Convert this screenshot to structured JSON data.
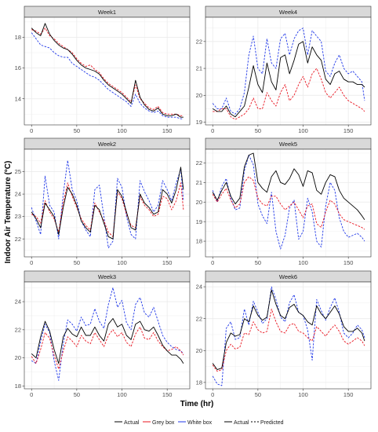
{
  "figure": {
    "ylabel": "Indoor Air Temperature (°C)",
    "xlabel": "Time (hr)"
  },
  "legend": {
    "items": [
      {
        "label": "Actual",
        "color": "#000000",
        "dash": "solid"
      },
      {
        "label": "Grey box",
        "color": "#e8141f",
        "dash": "solid"
      },
      {
        "label": "White box",
        "color": "#1f37e8",
        "dash": "solid"
      },
      {
        "label": "Actual",
        "color": "#000000",
        "dash": "solid"
      },
      {
        "label": "Predicted",
        "color": "#000000",
        "dash": "dashed"
      }
    ]
  },
  "colors": {
    "actual": "#000000",
    "grey_box": "#e8141f",
    "white_box": "#1f37e8",
    "panel_bg": "#ffffff",
    "strip_bg": "#d9d9d9",
    "grid": "#ebebeb"
  },
  "chart_data": [
    {
      "type": "line",
      "title": "Week1",
      "xlim": [
        -8,
        175
      ],
      "ylim": [
        12.3,
        19.3
      ],
      "xticks": [
        0,
        50,
        100,
        150
      ],
      "yticks": [
        14,
        16,
        18
      ],
      "grid": true,
      "x": [
        0,
        5,
        10,
        15,
        20,
        25,
        30,
        35,
        40,
        45,
        50,
        55,
        60,
        65,
        70,
        75,
        80,
        85,
        90,
        95,
        100,
        105,
        110,
        115,
        120,
        125,
        130,
        135,
        140,
        145,
        150,
        155,
        160,
        165,
        168
      ],
      "series": [
        {
          "name": "Actual",
          "values": [
            18.6,
            18.3,
            18.1,
            18.9,
            18.2,
            17.8,
            17.5,
            17.3,
            17.2,
            16.9,
            16.5,
            16.2,
            16.0,
            15.9,
            15.8,
            15.6,
            15.2,
            14.9,
            14.7,
            14.5,
            14.3,
            14.0,
            13.7,
            15.2,
            14.1,
            13.6,
            13.3,
            13.2,
            13.4,
            13.0,
            12.9,
            12.9,
            13.0,
            12.8,
            12.8
          ]
        },
        {
          "name": "Grey box",
          "values": [
            18.5,
            18.4,
            18.2,
            18.6,
            18.1,
            17.9,
            17.6,
            17.4,
            17.2,
            17.0,
            16.6,
            16.3,
            16.1,
            16.2,
            15.9,
            15.7,
            15.3,
            15.0,
            14.8,
            14.6,
            14.4,
            14.1,
            13.8,
            14.9,
            14.0,
            13.7,
            13.4,
            13.3,
            13.5,
            13.1,
            13.0,
            13.0,
            13.0,
            12.9,
            12.9
          ]
        },
        {
          "name": "White box",
          "values": [
            18.3,
            17.9,
            17.5,
            17.4,
            17.3,
            17.0,
            16.8,
            16.7,
            16.7,
            16.3,
            16.1,
            15.9,
            15.7,
            15.5,
            15.4,
            15.2,
            14.9,
            14.6,
            14.4,
            14.2,
            14.0,
            13.8,
            13.5,
            14.3,
            13.7,
            13.4,
            13.2,
            13.1,
            13.2,
            12.9,
            12.8,
            12.8,
            12.8,
            12.7,
            12.7
          ]
        }
      ]
    },
    {
      "type": "line",
      "title": "Week4",
      "xlim": [
        -8,
        175
      ],
      "ylim": [
        18.9,
        22.9
      ],
      "xticks": [
        0,
        50,
        100,
        150
      ],
      "yticks": [
        19,
        20,
        21,
        22
      ],
      "grid": true,
      "x": [
        0,
        5,
        10,
        15,
        20,
        25,
        30,
        35,
        40,
        45,
        50,
        55,
        60,
        65,
        70,
        75,
        80,
        85,
        90,
        95,
        100,
        105,
        110,
        115,
        120,
        125,
        130,
        135,
        140,
        145,
        150,
        155,
        160,
        165,
        168
      ],
      "series": [
        {
          "name": "Actual",
          "values": [
            19.5,
            19.4,
            19.4,
            19.6,
            19.3,
            19.2,
            19.4,
            19.6,
            20.3,
            21.1,
            20.4,
            20.1,
            21.2,
            20.5,
            20.2,
            21.4,
            21.5,
            20.8,
            21.3,
            21.9,
            22.0,
            21.2,
            21.8,
            21.5,
            21.3,
            20.6,
            20.4,
            20.8,
            20.9,
            20.6,
            20.5,
            20.5,
            20.4,
            20.4,
            20.3
          ]
        },
        {
          "name": "Grey box",
          "values": [
            19.4,
            19.4,
            19.5,
            19.5,
            19.2,
            19.1,
            19.2,
            19.3,
            19.5,
            19.9,
            19.5,
            19.5,
            20.1,
            19.8,
            19.6,
            20.1,
            20.4,
            19.8,
            20.0,
            20.4,
            20.7,
            20.3,
            20.8,
            21.0,
            20.6,
            20.1,
            19.9,
            20.1,
            20.3,
            20.0,
            19.8,
            19.7,
            19.6,
            19.5,
            19.4
          ]
        },
        {
          "name": "White box",
          "values": [
            19.7,
            19.5,
            19.5,
            19.9,
            19.4,
            19.3,
            19.5,
            20.1,
            21.5,
            22.2,
            21.0,
            20.8,
            22.1,
            21.2,
            21.0,
            22.1,
            22.3,
            21.5,
            22.1,
            22.4,
            22.5,
            21.5,
            22.4,
            22.2,
            22.0,
            20.9,
            20.7,
            21.2,
            21.5,
            21.0,
            20.8,
            20.9,
            20.7,
            20.5,
            19.8
          ]
        }
      ]
    },
    {
      "type": "line",
      "title": "Week2",
      "xlim": [
        -8,
        175
      ],
      "ylim": [
        21.2,
        26.0
      ],
      "xticks": [
        0,
        50,
        100,
        150
      ],
      "yticks": [
        22,
        23,
        24,
        25
      ],
      "grid": true,
      "x": [
        0,
        5,
        10,
        15,
        20,
        25,
        30,
        35,
        40,
        45,
        50,
        55,
        60,
        65,
        70,
        75,
        80,
        85,
        90,
        95,
        100,
        105,
        110,
        115,
        120,
        125,
        130,
        135,
        140,
        145,
        150,
        155,
        160,
        165,
        168
      ],
      "series": [
        {
          "name": "Actual",
          "values": [
            23.2,
            22.9,
            22.5,
            23.6,
            23.3,
            23.0,
            22.2,
            23.4,
            24.3,
            24.0,
            23.5,
            22.8,
            22.5,
            22.3,
            23.5,
            23.3,
            22.7,
            22.1,
            22.0,
            24.2,
            23.9,
            23.2,
            22.5,
            22.4,
            24.0,
            23.6,
            23.4,
            23.1,
            23.2,
            24.2,
            24.0,
            23.6,
            24.2,
            25.2,
            24.2
          ]
        },
        {
          "name": "Grey box",
          "values": [
            23.1,
            23.0,
            22.7,
            23.7,
            23.2,
            22.9,
            22.3,
            23.6,
            24.5,
            23.9,
            23.4,
            22.9,
            22.6,
            22.4,
            23.6,
            23.2,
            22.8,
            22.3,
            22.1,
            24.1,
            23.8,
            23.1,
            22.6,
            22.5,
            23.9,
            23.5,
            23.3,
            23.0,
            23.1,
            23.9,
            23.8,
            23.3,
            23.7,
            24.5,
            23.3
          ]
        },
        {
          "name": "White box",
          "values": [
            23.4,
            22.8,
            22.2,
            24.8,
            23.5,
            23.2,
            22.0,
            24.0,
            25.5,
            24.2,
            23.7,
            22.8,
            22.4,
            22.1,
            24.2,
            24.4,
            23.0,
            21.6,
            21.9,
            24.7,
            24.3,
            23.0,
            22.2,
            22.0,
            24.6,
            24.1,
            23.7,
            23.2,
            23.5,
            24.6,
            24.2,
            23.7,
            24.5,
            25.1,
            23.7
          ]
        }
      ]
    },
    {
      "type": "line",
      "title": "Week5",
      "xlim": [
        -8,
        175
      ],
      "ylim": [
        17.2,
        22.7
      ],
      "xticks": [
        0,
        50,
        100,
        150
      ],
      "yticks": [
        18,
        19,
        20,
        21,
        22
      ],
      "grid": true,
      "x": [
        0,
        5,
        10,
        15,
        20,
        25,
        30,
        35,
        40,
        45,
        50,
        55,
        60,
        65,
        70,
        75,
        80,
        85,
        90,
        95,
        100,
        105,
        110,
        115,
        120,
        125,
        130,
        135,
        140,
        145,
        150,
        155,
        160,
        165,
        168
      ],
      "series": [
        {
          "name": "Actual",
          "values": [
            20.5,
            20.1,
            20.6,
            21.0,
            20.3,
            19.9,
            20.2,
            21.8,
            22.4,
            22.5,
            21.0,
            20.7,
            20.5,
            21.3,
            21.6,
            21.0,
            20.9,
            21.2,
            21.7,
            21.4,
            20.8,
            21.6,
            21.5,
            20.6,
            20.4,
            21.0,
            21.4,
            21.3,
            20.6,
            20.2,
            20.0,
            19.8,
            19.6,
            19.3,
            19.1
          ]
        },
        {
          "name": "Grey box",
          "values": [
            20.4,
            20.0,
            20.4,
            20.7,
            20.1,
            19.7,
            19.9,
            21.0,
            21.3,
            21.1,
            20.2,
            19.9,
            19.8,
            20.3,
            20.3,
            19.9,
            19.6,
            19.8,
            20.0,
            19.6,
            19.2,
            19.8,
            19.9,
            18.9,
            18.7,
            19.5,
            20.1,
            19.9,
            19.4,
            19.1,
            19.0,
            18.9,
            18.8,
            18.7,
            18.6
          ]
        },
        {
          "name": "White box",
          "values": [
            20.6,
            20.0,
            20.8,
            21.2,
            20.2,
            19.6,
            19.7,
            21.6,
            22.4,
            21.9,
            19.9,
            19.3,
            18.9,
            20.5,
            18.5,
            17.6,
            18.3,
            19.7,
            20.1,
            18.1,
            18.5,
            20.2,
            19.5,
            18.0,
            17.7,
            19.8,
            21.0,
            20.6,
            19.2,
            18.5,
            18.2,
            18.3,
            18.4,
            18.2,
            18.0
          ]
        }
      ]
    },
    {
      "type": "line",
      "title": "Week3",
      "xlim": [
        -8,
        175
      ],
      "ylim": [
        17.8,
        25.4
      ],
      "xticks": [
        0,
        50,
        100,
        150
      ],
      "yticks": [
        18,
        20,
        22,
        24
      ],
      "grid": true,
      "x": [
        0,
        5,
        10,
        15,
        20,
        25,
        30,
        35,
        40,
        45,
        50,
        55,
        60,
        65,
        70,
        75,
        80,
        85,
        90,
        95,
        100,
        105,
        110,
        115,
        120,
        125,
        130,
        135,
        140,
        145,
        150,
        155,
        160,
        165,
        168
      ],
      "series": [
        {
          "name": "Actual",
          "values": [
            20.3,
            20.0,
            21.5,
            22.6,
            21.9,
            20.6,
            19.6,
            21.5,
            22.1,
            21.7,
            21.5,
            22.2,
            21.6,
            21.6,
            22.2,
            21.6,
            21.2,
            22.4,
            22.8,
            22.2,
            22.4,
            21.6,
            21.3,
            22.4,
            22.6,
            22.0,
            21.9,
            22.2,
            21.6,
            20.9,
            20.5,
            20.2,
            20.2,
            19.9,
            19.6
          ]
        },
        {
          "name": "Grey box",
          "values": [
            20.1,
            19.6,
            20.6,
            21.8,
            21.4,
            20.2,
            19.2,
            20.5,
            21.5,
            21.2,
            20.8,
            21.6,
            21.2,
            21.0,
            21.8,
            21.3,
            20.8,
            21.6,
            22.0,
            21.5,
            21.8,
            21.1,
            20.8,
            21.7,
            22.2,
            21.4,
            21.3,
            21.8,
            21.2,
            20.8,
            20.5,
            20.6,
            20.8,
            20.5,
            20.2
          ]
        },
        {
          "name": "White box",
          "values": [
            19.8,
            19.6,
            21.2,
            22.4,
            21.8,
            19.8,
            18.4,
            21.0,
            22.7,
            22.4,
            21.9,
            22.9,
            22.3,
            22.4,
            23.5,
            22.6,
            22.1,
            23.8,
            25.0,
            23.6,
            24.1,
            22.5,
            22.0,
            23.8,
            24.3,
            23.2,
            22.9,
            23.6,
            22.6,
            21.6,
            21.1,
            20.8,
            20.6,
            20.5,
            20.3
          ]
        }
      ]
    },
    {
      "type": "line",
      "title": "Week6",
      "xlim": [
        -8,
        175
      ],
      "ylim": [
        17.6,
        24.3
      ],
      "xticks": [
        0,
        50,
        100,
        150
      ],
      "yticks": [
        18,
        20,
        22,
        24
      ],
      "grid": true,
      "x": [
        0,
        5,
        10,
        15,
        20,
        25,
        30,
        35,
        40,
        45,
        50,
        55,
        60,
        65,
        70,
        75,
        80,
        85,
        90,
        95,
        100,
        105,
        110,
        115,
        120,
        125,
        130,
        135,
        140,
        145,
        150,
        155,
        160,
        165,
        168
      ],
      "series": [
        {
          "name": "Actual",
          "values": [
            19.2,
            18.8,
            18.9,
            20.5,
            21.1,
            20.9,
            21.0,
            22.0,
            21.8,
            22.8,
            22.2,
            21.9,
            22.1,
            23.8,
            22.9,
            22.2,
            22.0,
            22.7,
            22.9,
            22.4,
            22.2,
            21.8,
            21.6,
            22.8,
            22.3,
            22.0,
            22.4,
            22.8,
            22.3,
            21.5,
            21.2,
            21.2,
            21.4,
            21.1,
            20.6
          ]
        },
        {
          "name": "Grey box",
          "values": [
            19.1,
            18.7,
            18.8,
            20.0,
            20.4,
            20.1,
            20.2,
            21.1,
            21.0,
            21.8,
            21.3,
            21.1,
            21.2,
            22.6,
            21.8,
            21.2,
            21.1,
            21.6,
            21.7,
            21.2,
            21.1,
            20.8,
            20.6,
            21.5,
            21.2,
            20.9,
            21.3,
            21.6,
            21.2,
            20.6,
            20.4,
            20.6,
            20.8,
            20.6,
            20.3
          ]
        },
        {
          "name": "White box",
          "values": [
            18.4,
            17.9,
            17.8,
            21.4,
            21.8,
            20.7,
            20.8,
            22.6,
            21.6,
            23.1,
            22.4,
            21.7,
            22.0,
            24.0,
            23.2,
            22.1,
            21.8,
            23.0,
            23.5,
            22.4,
            22.2,
            21.3,
            19.4,
            23.2,
            22.5,
            21.9,
            22.7,
            23.3,
            22.4,
            21.1,
            20.8,
            21.1,
            21.6,
            21.3,
            20.8
          ]
        }
      ]
    }
  ]
}
